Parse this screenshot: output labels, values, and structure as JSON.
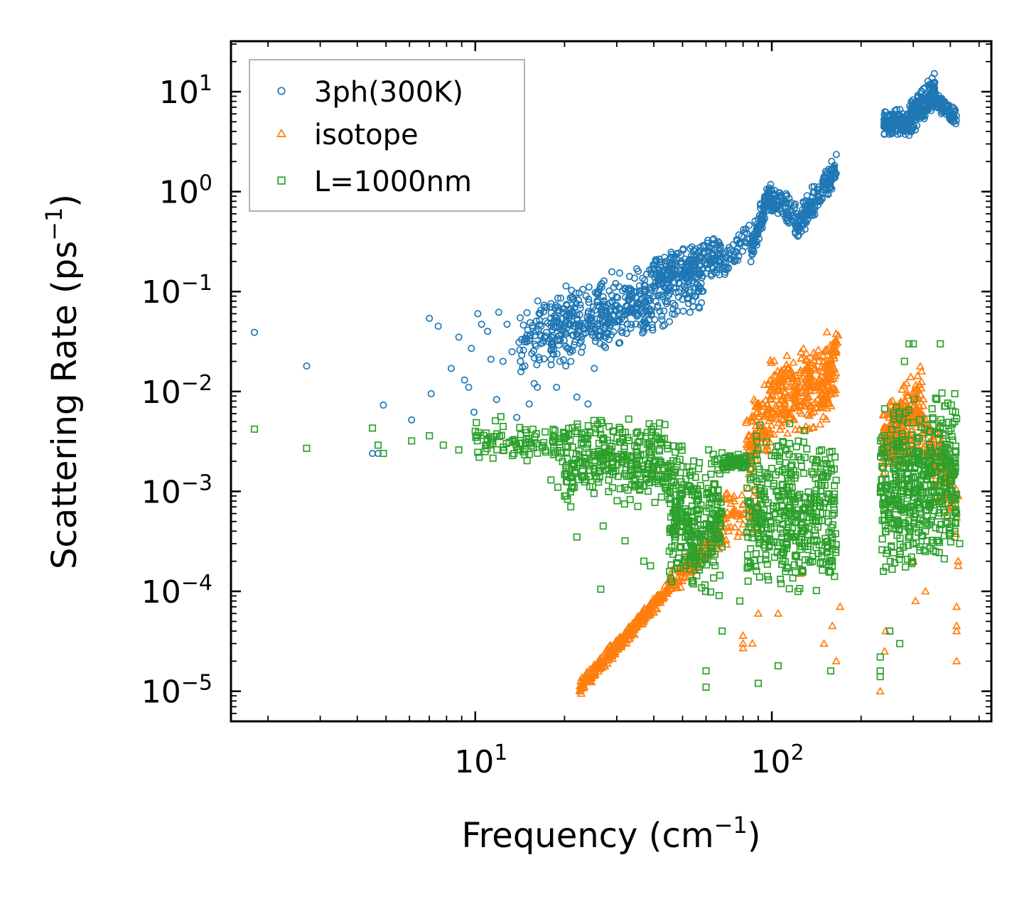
{
  "chart_data": {
    "type": "scatter",
    "xscale": "log",
    "yscale": "log",
    "xlabel": "Frequency (cm",
    "xlabel_sup": "−1",
    "xlabel_close": ")",
    "ylabel": "Scattering Rate (ps",
    "ylabel_sup": "−1",
    "ylabel_close": ")",
    "xlim": [
      1.5,
      550
    ],
    "ylim": [
      5e-06,
      32
    ],
    "x_ticks": [
      {
        "base": "10",
        "exp": "1",
        "value": 10
      },
      {
        "base": "10",
        "exp": "2",
        "value": 100
      }
    ],
    "y_ticks": [
      {
        "base": "10",
        "exp": "−5",
        "value": 1e-05
      },
      {
        "base": "10",
        "exp": "−4",
        "value": 0.0001
      },
      {
        "base": "10",
        "exp": "−3",
        "value": 0.001
      },
      {
        "base": "10",
        "exp": "−2",
        "value": 0.01
      },
      {
        "base": "10",
        "exp": "−1",
        "value": 0.1
      },
      {
        "base": "10",
        "exp": "0",
        "value": 1
      },
      {
        "base": "10",
        "exp": "1",
        "value": 10
      }
    ],
    "legend_position": "top-left",
    "series": [
      {
        "name": "3ph(300K)",
        "marker": "circle",
        "color": "#1f77b4",
        "points": [
          [
            1.8,
            0.039
          ],
          [
            2.7,
            0.018
          ],
          [
            4.5,
            0.0024
          ],
          [
            4.7,
            0.0024
          ],
          [
            4.9,
            0.0073
          ],
          [
            6.1,
            0.0052
          ],
          [
            7.0,
            0.054
          ],
          [
            7.1,
            0.0095
          ],
          [
            7.5,
            0.045
          ],
          [
            8.3,
            0.017
          ],
          [
            8.8,
            0.035
          ],
          [
            9.2,
            0.013
          ],
          [
            9.5,
            0.011
          ],
          [
            9.7,
            0.027
          ],
          [
            9.9,
            0.0062
          ],
          [
            10.2,
            0.06
          ],
          [
            10.5,
            0.047
          ],
          [
            11.0,
            0.04
          ],
          [
            11.3,
            0.021
          ],
          [
            11.8,
            0.0083
          ],
          [
            12.0,
            0.062
          ],
          [
            12.4,
            0.02
          ],
          [
            12.8,
            0.047
          ],
          [
            13.3,
            0.025
          ],
          [
            13.8,
            0.0055
          ],
          [
            14.2,
            0.02
          ],
          [
            14.7,
            0.018
          ],
          [
            15.2,
            0.0075
          ],
          [
            15.8,
            0.012
          ],
          [
            16.2,
            0.011
          ],
          [
            17.0,
            0.032
          ],
          [
            18.2,
            0.028
          ],
          [
            18.8,
            0.011
          ],
          [
            19.3,
            0.02
          ],
          [
            20.2,
            0.018
          ],
          [
            21.0,
            0.02
          ],
          [
            22.0,
            0.0088
          ],
          [
            23.0,
            0.028
          ],
          [
            24.0,
            0.0075
          ],
          [
            25.2,
            0.017
          ],
          [
            26.0,
            0.04
          ],
          [
            30.0,
            0.05
          ]
        ],
        "segments": [
          {
            "x": [
              14,
              60
            ],
            "y": [
              0.03,
              0.12
            ],
            "spread": [
              -0.35,
              0.45
            ],
            "count": 430,
            "jit": 0.05
          },
          {
            "x": [
              18,
              40
            ],
            "y": [
              0.055,
              0.1
            ],
            "spread": [
              -0.45,
              0.15
            ],
            "count": 140,
            "jit": 0.04
          },
          {
            "x": [
              40,
              68
            ],
            "y": [
              0.12,
              0.2
            ],
            "spread": [
              -0.2,
              0.3
            ],
            "count": 200,
            "jit": 0.03
          },
          {
            "x": [
              68,
              85
            ],
            "y": [
              0.17,
              0.4
            ],
            "spread": [
              -0.15,
              0.15
            ],
            "count": 50,
            "jit": 0.02
          },
          {
            "x": [
              85,
              98
            ],
            "y": [
              0.3,
              1.1
            ],
            "spread": [
              -0.25,
              0.12
            ],
            "count": 100,
            "jit": 0.02
          },
          {
            "x": [
              98,
              122
            ],
            "y": [
              0.9,
              0.5
            ],
            "spread": [
              -0.15,
              0.2
            ],
            "count": 90,
            "jit": 0.02
          },
          {
            "x": [
              122,
              165
            ],
            "y": [
              0.45,
              1.7
            ],
            "spread": [
              -0.2,
              0.2
            ],
            "count": 150,
            "jit": 0.02
          },
          {
            "x": [
              238,
              290
            ],
            "y": [
              4.8,
              5.0
            ],
            "spread": [
              -0.15,
              0.15
            ],
            "count": 150,
            "jit": 0.02
          },
          {
            "x": [
              290,
              355
            ],
            "y": [
              6.0,
              12.0
            ],
            "spread": [
              -0.25,
              0.12
            ],
            "count": 200,
            "jit": 0.02
          },
          {
            "x": [
              355,
              420
            ],
            "y": [
              8.0,
              5.5
            ],
            "spread": [
              -0.1,
              0.1
            ],
            "count": 100,
            "jit": 0.02
          }
        ]
      },
      {
        "name": "isotope",
        "marker": "triangle",
        "color": "#ff7f0e",
        "points": [
          [
            80,
            3e-05
          ],
          [
            80,
            2.7e-05
          ],
          [
            80,
            3.6e-05
          ],
          [
            86,
            3e-05
          ],
          [
            90,
            6e-05
          ],
          [
            105,
            6e-05
          ],
          [
            125,
            0.00015
          ],
          [
            150,
            3e-05
          ],
          [
            160,
            4.5e-05
          ],
          [
            165,
            2e-05
          ],
          [
            170,
            7e-05
          ],
          [
            232,
            1e-05
          ],
          [
            240,
            2.5e-05
          ],
          [
            242,
            4e-05
          ],
          [
            300,
            0.0002
          ],
          [
            305,
            8e-05
          ],
          [
            330,
            0.0001
          ],
          [
            420,
            7e-05
          ],
          [
            420,
            4.5e-05
          ],
          [
            420,
            4e-05
          ],
          [
            420,
            2e-05
          ],
          [
            420,
            0.00055
          ],
          [
            425,
            0.00018
          ],
          [
            425,
            0.0002
          ],
          [
            425,
            0.0009
          ]
        ],
        "segments": [
          {
            "x": [
              22.5,
              45
            ],
            "y": [
              1e-05,
              0.0001
            ],
            "spread": [
              -0.05,
              0.12
            ],
            "count": 320,
            "jit": 0.01
          },
          {
            "x": [
              45,
              68
            ],
            "y": [
              0.0001,
              0.00035
            ],
            "spread": [
              -0.1,
              0.2
            ],
            "count": 130,
            "jit": 0.02
          },
          {
            "x": [
              68,
              90
            ],
            "y": [
              0.00045,
              0.0006
            ],
            "spread": [
              -0.2,
              0.35
            ],
            "count": 60,
            "jit": 0.03
          },
          {
            "x": [
              82,
              98
            ],
            "y": [
              0.002,
              0.004
            ],
            "spread": [
              -0.3,
              0.6
            ],
            "count": 110,
            "jit": 0.05
          },
          {
            "x": [
              98,
              165
            ],
            "y": [
              0.006,
              0.012
            ],
            "spread": [
              -0.4,
              0.6
            ],
            "count": 300,
            "jit": 0.06
          },
          {
            "x": [
              148,
              168
            ],
            "y": [
              0.01,
              0.05
            ],
            "spread": [
              -0.25,
              0.05
            ],
            "count": 50,
            "jit": 0.02
          },
          {
            "x": [
              236,
              320
            ],
            "y": [
              0.003,
              0.008
            ],
            "spread": [
              -0.45,
              0.4
            ],
            "count": 260,
            "jit": 0.05
          },
          {
            "x": [
              320,
              420
            ],
            "y": [
              0.005,
              0.001
            ],
            "spread": [
              -0.5,
              0.3
            ],
            "count": 120,
            "jit": 0.04
          }
        ]
      },
      {
        "name": "L=1000nm",
        "marker": "square",
        "color": "#2ca02c",
        "points": [
          [
            1.8,
            0.0042
          ],
          [
            2.7,
            0.0027
          ],
          [
            4.5,
            0.0043
          ],
          [
            4.7,
            0.0029
          ],
          [
            4.9,
            0.0024
          ],
          [
            6.1,
            0.0032
          ],
          [
            7.0,
            0.0036
          ],
          [
            7.8,
            0.0029
          ],
          [
            8.8,
            0.0026
          ],
          [
            10.0,
            0.004
          ],
          [
            10.8,
            0.0025
          ],
          [
            11.7,
            0.0051
          ],
          [
            12.2,
            0.0056
          ],
          [
            13.5,
            0.0033
          ],
          [
            14.5,
            0.0025
          ],
          [
            18.0,
            0.0013
          ],
          [
            19.0,
            0.0011
          ],
          [
            20.0,
            0.0009
          ],
          [
            21.0,
            0.0007
          ],
          [
            22.0,
            0.00035
          ],
          [
            26.5,
            0.000105
          ],
          [
            27.0,
            0.00045
          ],
          [
            32.0,
            0.00032
          ],
          [
            37.0,
            0.0002
          ],
          [
            39.0,
            0.00018
          ],
          [
            60.0,
            1.1e-05
          ],
          [
            60.0,
            1.6e-05
          ],
          [
            68.0,
            4e-05
          ],
          [
            78.0,
            8e-05
          ],
          [
            90.0,
            1.2e-05
          ],
          [
            105.0,
            1.8e-05
          ],
          [
            158.0,
            1.6e-05
          ],
          [
            232.0,
            1.4e-05
          ],
          [
            232.0,
            1.6e-05
          ],
          [
            232.0,
            2.2e-05
          ],
          [
            250.0,
            4e-05
          ],
          [
            270.0,
            3e-05
          ],
          [
            280.0,
            0.02
          ],
          [
            290.0,
            0.03
          ],
          [
            300.0,
            0.03
          ],
          [
            330.0,
            0.00025
          ],
          [
            370.0,
            0.03
          ],
          [
            420.0,
            0.0006
          ],
          [
            430.0,
            0.0003
          ]
        ],
        "segments": [
          {
            "x": [
              10,
              20
            ],
            "y": [
              0.0032,
              0.003
            ],
            "spread": [
              -0.2,
              0.2
            ],
            "count": 90,
            "jit": 0.04
          },
          {
            "x": [
              20,
              45
            ],
            "y": [
              0.0028,
              0.0024
            ],
            "spread": [
              -0.55,
              0.35
            ],
            "count": 320,
            "jit": 0.05
          },
          {
            "x": [
              45,
              68
            ],
            "y": [
              0.0018,
              0.0015
            ],
            "spread": [
              -1.3,
              0.35
            ],
            "count": 320,
            "jit": 0.04
          },
          {
            "x": [
              68,
              82
            ],
            "y": [
              0.0019,
              0.0021
            ],
            "spread": [
              -0.1,
              0.08
            ],
            "count": 70,
            "jit": 0.02
          },
          {
            "x": [
              82,
              165
            ],
            "y": [
              0.0015,
              0.0015
            ],
            "spread": [
              -1.2,
              0.5
            ],
            "count": 440,
            "jit": 0.05
          },
          {
            "x": [
              232,
              420
            ],
            "y": [
              0.002,
              0.003
            ],
            "spread": [
              -1.2,
              0.6
            ],
            "count": 520,
            "jit": 0.05
          }
        ]
      }
    ]
  }
}
